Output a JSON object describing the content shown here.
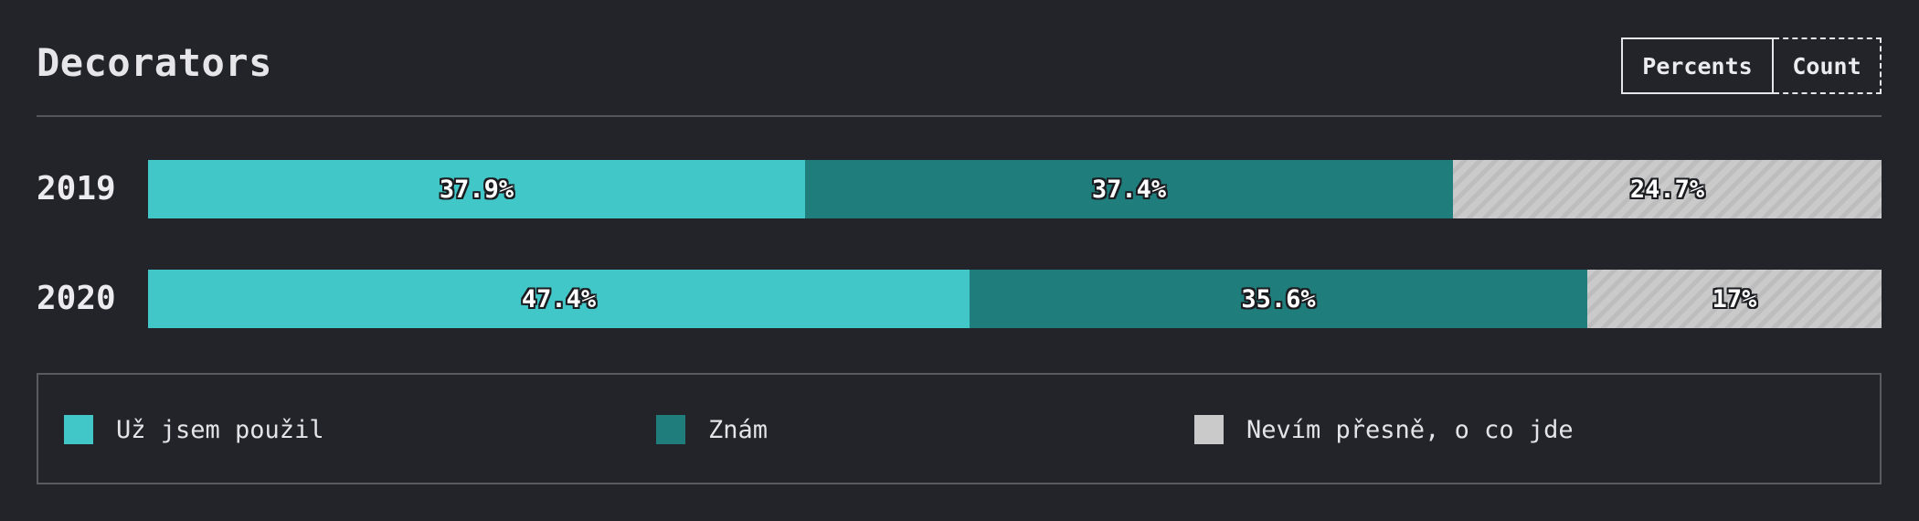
{
  "title": "Decorators",
  "toggle": {
    "percents_label": "Percents",
    "count_label": "Count",
    "active": "Percents"
  },
  "colors": {
    "used": "#42c7c8",
    "know": "#1f7d7c",
    "unknown": "#cacaca"
  },
  "chart_data": {
    "type": "bar",
    "orientation": "horizontal",
    "stacked": true,
    "normalized": true,
    "title": "Decorators",
    "categories": [
      "2019",
      "2020"
    ],
    "series": [
      {
        "name": "Už jsem použil",
        "key": "used",
        "values": [
          37.9,
          47.4
        ],
        "labels": [
          "37.9%",
          "47.4%"
        ]
      },
      {
        "name": "Znám",
        "key": "know",
        "values": [
          37.4,
          35.6
        ],
        "labels": [
          "37.4%",
          "35.6%"
        ]
      },
      {
        "name": "Nevím přesně, o co jde",
        "key": "unknown",
        "values": [
          24.7,
          17.0
        ],
        "labels": [
          "24.7%",
          "17%"
        ]
      }
    ],
    "xlim": [
      0,
      100
    ],
    "unit": "%",
    "legend_position": "bottom"
  }
}
